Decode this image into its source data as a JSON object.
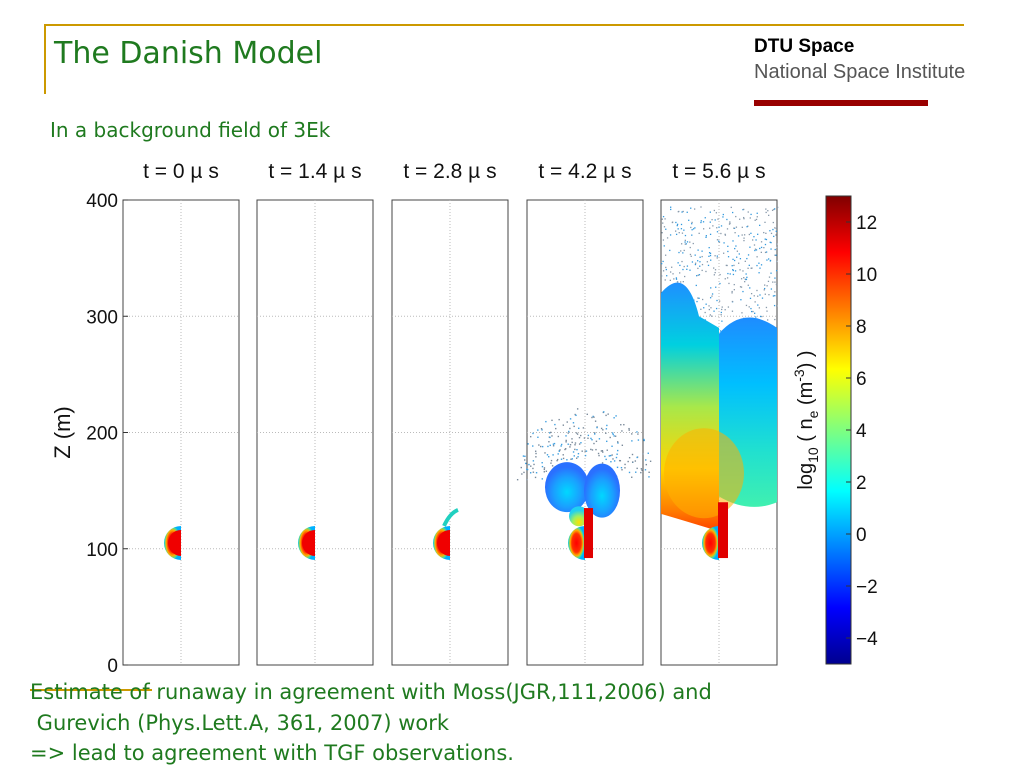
{
  "slide": {
    "title": "The Danish Model",
    "brand_line1": "DTU Space",
    "brand_line2": "National Space Institute",
    "subtitle": "In a background field of 3Ek",
    "body_lines": [
      "Estimate of runaway in agreement with Moss(JGR,111,2006) and",
      " Gurevich (Phys.Lett.A, 361, 2007) work",
      "=> lead to agreement with TGF observations."
    ]
  },
  "colors": {
    "title_green": "#1f7a1f",
    "accent_gold": "#cc9900",
    "brand_red": "#990000"
  },
  "chart_data": {
    "type": "heatmap",
    "panel_titles": [
      "t = 0 µ s",
      "t = 1.4 µ s",
      "t = 2.8 µ s",
      "t = 4.2 µ s",
      "t = 5.6 µ s"
    ],
    "times_us": [
      0,
      1.4,
      2.8,
      4.2,
      5.6
    ],
    "ylabel": "Z (m)",
    "ylim": [
      0,
      400
    ],
    "yticks": [
      0,
      100,
      200,
      300,
      400
    ],
    "grid": true,
    "colorbar": {
      "label": "log10 ( n_e (m^-3) )",
      "label_main": "log",
      "label_sub": "10",
      "label_rest": " ( n",
      "label_sub2": "e",
      "label_rest2": " (m",
      "label_sup": "-3",
      "label_end": ") )",
      "range": [
        -5,
        13
      ],
      "ticks": [
        12,
        10,
        8,
        6,
        4,
        2,
        0,
        -2,
        -4
      ]
    },
    "streamer_top_m": [
      115,
      115,
      125,
      200,
      330
    ]
  }
}
